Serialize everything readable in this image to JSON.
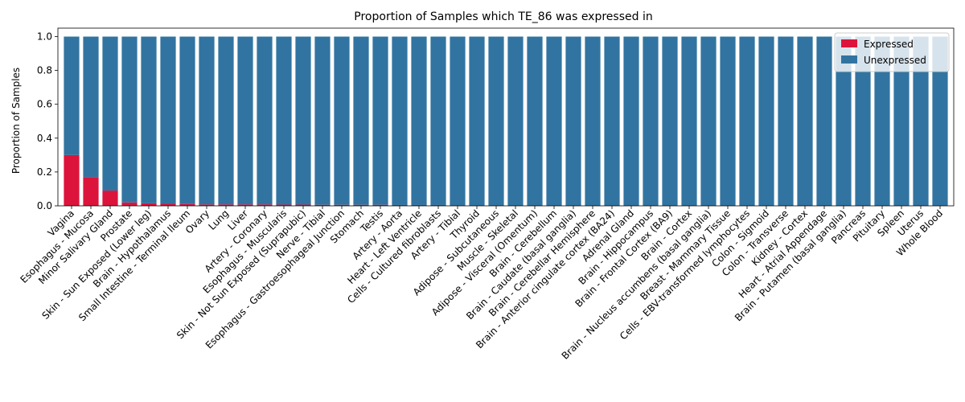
{
  "chart_data": {
    "type": "bar",
    "stacked": true,
    "title": "Proportion of Samples which TE_86 was expressed in",
    "xlabel": "",
    "ylabel": "Proportion of Samples",
    "ylim": [
      0,
      1.05
    ],
    "yticks": [
      0.0,
      0.2,
      0.4,
      0.6,
      0.8,
      1.0
    ],
    "ytick_labels": [
      "0.0",
      "0.2",
      "0.4",
      "0.6",
      "0.8",
      "1.0"
    ],
    "grid": false,
    "legend": {
      "placement": "top-right",
      "entries": [
        "Expressed",
        "Unexpressed"
      ]
    },
    "categories": [
      "Vagina",
      "Esophagus - Mucosa",
      "Minor Salivary Gland",
      "Prostate",
      "Skin - Sun Exposed (Lower leg)",
      "Brain - Hypothalamus",
      "Small Intestine - Terminal Ileum",
      "Ovary",
      "Lung",
      "Liver",
      "Artery - Coronary",
      "Esophagus - Muscularis",
      "Skin - Not Sun Exposed (Suprapubic)",
      "Nerve - Tibial",
      "Esophagus - Gastroesophageal Junction",
      "Stomach",
      "Testis",
      "Artery - Aorta",
      "Heart - Left Ventricle",
      "Cells - Cultured fibroblasts",
      "Artery - Tibial",
      "Thyroid",
      "Adipose - Subcutaneous",
      "Muscle - Skeletal",
      "Adipose - Visceral (Omentum)",
      "Brain - Cerebellum",
      "Brain - Caudate (basal ganglia)",
      "Brain - Cerebellar Hemisphere",
      "Brain - Anterior cingulate cortex (BA24)",
      "Adrenal Gland",
      "Brain - Hippocampus",
      "Brain - Frontal Cortex (BA9)",
      "Brain - Cortex",
      "Brain - Nucleus accumbens (basal ganglia)",
      "Breast - Mammary Tissue",
      "Cells - EBV-transformed lymphocytes",
      "Colon - Sigmoid",
      "Colon - Transverse",
      "Kidney - Cortex",
      "Heart - Atrial Appendage",
      "Brain - Putamen (basal ganglia)",
      "Pancreas",
      "Pituitary",
      "Spleen",
      "Uterus",
      "Whole Blood"
    ],
    "series": [
      {
        "name": "Expressed",
        "color": "#dc143c",
        "values": [
          0.3,
          0.17,
          0.09,
          0.02,
          0.015,
          0.012,
          0.01,
          0.008,
          0.008,
          0.008,
          0.008,
          0.007,
          0.007,
          0.006,
          0.006,
          0.006,
          0.006,
          0.005,
          0.005,
          0.005,
          0,
          0,
          0,
          0,
          0,
          0,
          0,
          0,
          0,
          0,
          0,
          0,
          0,
          0,
          0,
          0,
          0,
          0,
          0,
          0,
          0,
          0,
          0,
          0,
          0,
          0
        ]
      },
      {
        "name": "Unexpressed",
        "color": "#3274a1",
        "values": [
          0.7,
          0.83,
          0.91,
          0.98,
          0.985,
          0.988,
          0.99,
          0.992,
          0.992,
          0.992,
          0.992,
          0.993,
          0.993,
          0.994,
          0.994,
          0.994,
          0.994,
          0.995,
          0.995,
          0.995,
          1,
          1,
          1,
          1,
          1,
          1,
          1,
          1,
          1,
          1,
          1,
          1,
          1,
          1,
          1,
          1,
          1,
          1,
          1,
          1,
          1,
          1,
          1,
          1,
          1,
          1
        ]
      }
    ]
  }
}
